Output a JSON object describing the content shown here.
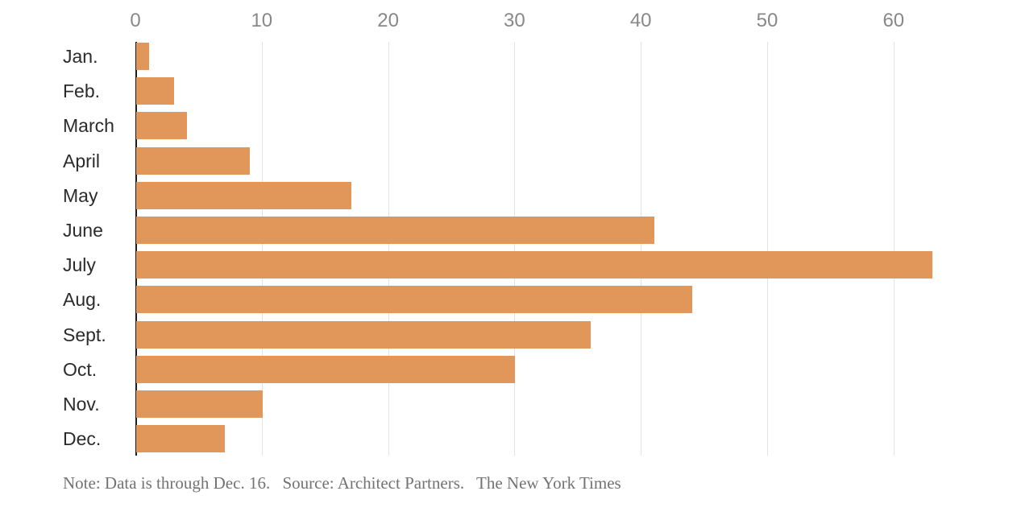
{
  "chart_data": {
    "type": "bar",
    "orientation": "horizontal",
    "categories": [
      "Jan.",
      "Feb.",
      "March",
      "April",
      "May",
      "June",
      "July",
      "Aug.",
      "Sept.",
      "Oct.",
      "Nov.",
      "Dec."
    ],
    "values": [
      1,
      3,
      4,
      9,
      17,
      41,
      63,
      44,
      36,
      30,
      10,
      7
    ],
    "x_ticks": [
      0,
      10,
      20,
      30,
      40,
      50,
      60
    ],
    "xlim": [
      0,
      69.8
    ],
    "grid": true,
    "tick_position": "top",
    "legend": "none",
    "xlabel": "",
    "ylabel": ""
  },
  "footer": {
    "note": "Note: Data is through Dec. 16.",
    "source": "Source: Architect Partners.",
    "credit": "The New York Times"
  },
  "colors": {
    "bar": "#e2975a",
    "axis": "#1a1a1a",
    "gridline": "#e3e3e3",
    "tick_label": "#888888",
    "category_label": "#2b2b2b",
    "note_text": "#737373"
  }
}
